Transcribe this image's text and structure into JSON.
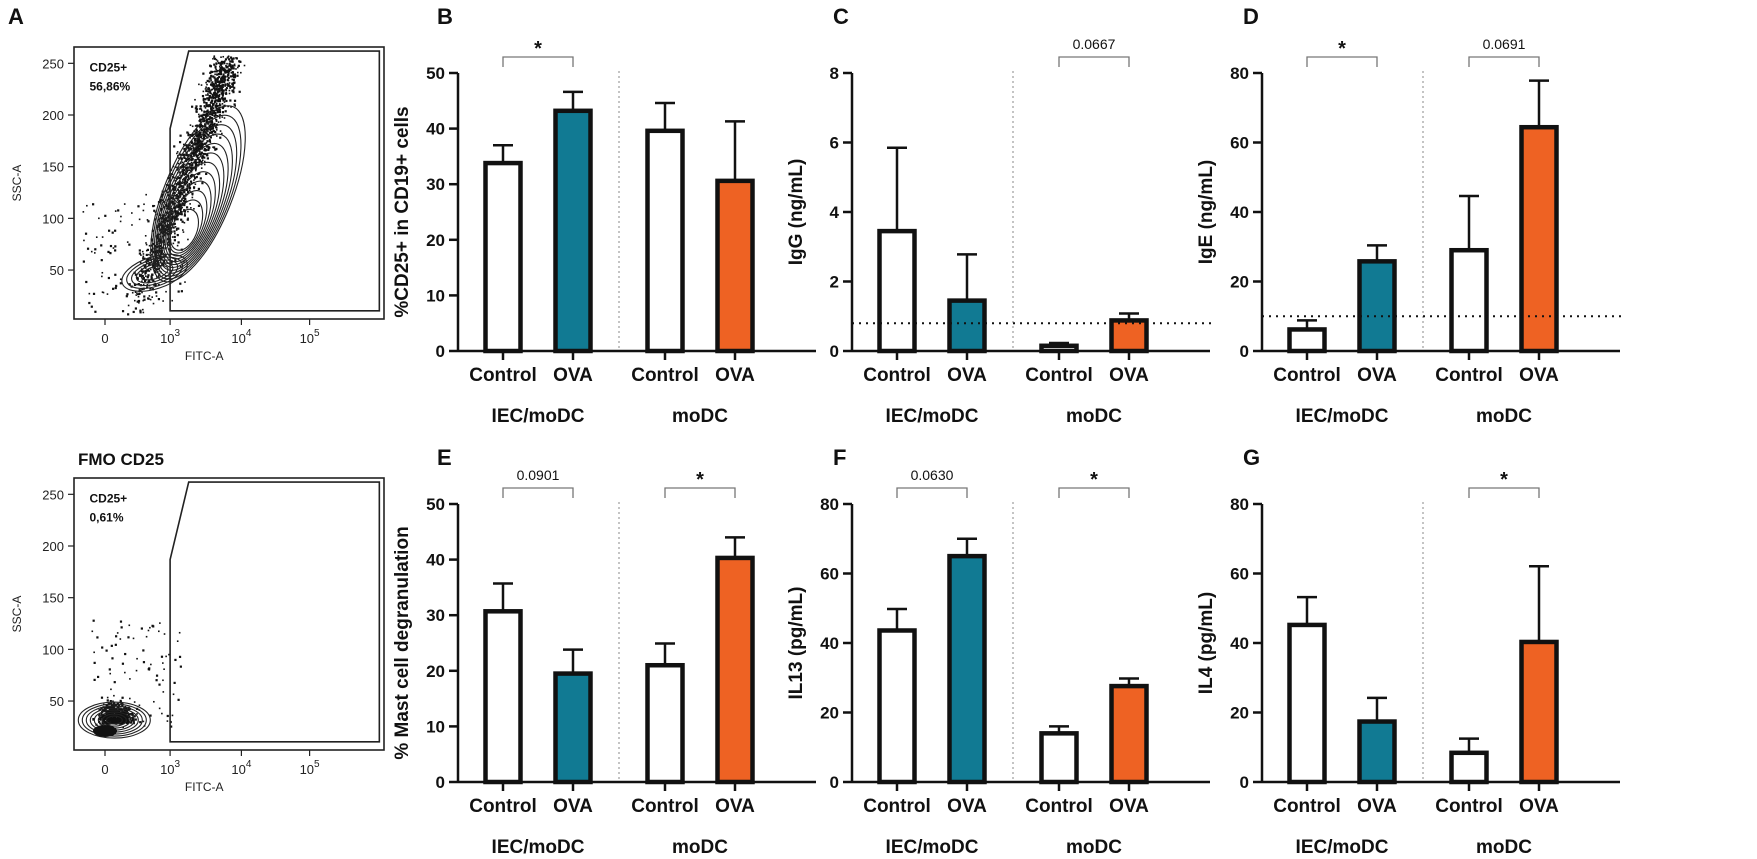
{
  "colors": {
    "control_fill": "#ffffff",
    "ova_iec": "#117a93",
    "ova_modc": "#ee6223",
    "axis": "#111111"
  },
  "flow": [
    {
      "panel_label": "A",
      "title": "",
      "gate_name": "CD25+",
      "gate_value": "56,86%",
      "x_label": "FITC-A",
      "y_label": "SSC-A",
      "x_ticks": [
        "0",
        "10",
        "10",
        "10"
      ],
      "x_tick_exps": [
        "",
        "3",
        "4",
        "5"
      ],
      "y_ticks": [
        "50",
        "100",
        "150",
        "200",
        "250"
      ]
    },
    {
      "panel_label": "",
      "title": "FMO CD25",
      "gate_name": "CD25+",
      "gate_value": "0,61%",
      "x_label": "FITC-A",
      "y_label": "SSC-A",
      "x_ticks": [
        "0",
        "10",
        "10",
        "10"
      ],
      "x_tick_exps": [
        "",
        "3",
        "4",
        "5"
      ],
      "y_ticks": [
        "50",
        "100",
        "150",
        "200",
        "250"
      ]
    }
  ],
  "chart_data": [
    {
      "panel_label": "B",
      "type": "bar",
      "ylabel": "%CD25+ in CD19+ cells",
      "ylim": [
        0,
        50
      ],
      "yticks": [
        0,
        10,
        20,
        30,
        40,
        50
      ],
      "categories": [
        "Control",
        "OVA",
        "Control",
        "OVA"
      ],
      "groups": [
        "IEC/moDC",
        "moDC"
      ],
      "values": [
        33.8,
        43.2,
        39.6,
        30.6
      ],
      "errors": [
        3.2,
        3.4,
        5.0,
        10.7
      ],
      "comparisons": [
        {
          "group": 0,
          "label": "*"
        }
      ],
      "threshold": null
    },
    {
      "panel_label": "C",
      "type": "bar",
      "ylabel": "IgG (ng/mL)",
      "ylim": [
        0,
        8
      ],
      "yticks": [
        0,
        2,
        4,
        6,
        8
      ],
      "categories": [
        "Control",
        "OVA",
        "Control",
        "OVA"
      ],
      "groups": [
        "IEC/moDC",
        "moDC"
      ],
      "values": [
        3.45,
        1.45,
        0.15,
        0.88
      ],
      "errors": [
        2.4,
        1.33,
        0.08,
        0.2
      ],
      "comparisons": [
        {
          "group": 1,
          "label": "0.0667"
        }
      ],
      "threshold": 0.8
    },
    {
      "panel_label": "D",
      "type": "bar",
      "ylabel": "IgE (ng/mL)",
      "ylim": [
        0,
        80
      ],
      "yticks": [
        0,
        20,
        40,
        60,
        80
      ],
      "categories": [
        "Control",
        "OVA",
        "Control",
        "OVA"
      ],
      "groups": [
        "IEC/moDC",
        "moDC"
      ],
      "values": [
        6.2,
        25.8,
        29.0,
        64.4
      ],
      "errors": [
        2.6,
        4.6,
        15.6,
        13.4
      ],
      "comparisons": [
        {
          "group": 0,
          "label": "*"
        },
        {
          "group": 1,
          "label": "0.0691"
        }
      ],
      "threshold": 10
    },
    {
      "panel_label": "E",
      "type": "bar",
      "ylabel": "% Mast cell degranulation",
      "ylim": [
        0,
        50
      ],
      "yticks": [
        0,
        10,
        20,
        30,
        40,
        50
      ],
      "categories": [
        "Control",
        "OVA",
        "Control",
        "OVA"
      ],
      "groups": [
        "IEC/moDC",
        "moDC"
      ],
      "values": [
        30.7,
        19.5,
        21.0,
        40.3
      ],
      "errors": [
        5.0,
        4.3,
        3.9,
        3.7
      ],
      "comparisons": [
        {
          "group": 0,
          "label": "0.0901"
        },
        {
          "group": 1,
          "label": "*"
        }
      ],
      "threshold": null
    },
    {
      "panel_label": "F",
      "type": "bar",
      "ylabel": "IL13 (pg/mL)",
      "ylim": [
        0,
        80
      ],
      "yticks": [
        0,
        20,
        40,
        60,
        80
      ],
      "categories": [
        "Control",
        "OVA",
        "Control",
        "OVA"
      ],
      "groups": [
        "IEC/moDC",
        "moDC"
      ],
      "values": [
        43.6,
        65.0,
        14.0,
        27.6
      ],
      "errors": [
        6.2,
        5.0,
        2.0,
        2.2
      ],
      "comparisons": [
        {
          "group": 0,
          "label": "0.0630"
        },
        {
          "group": 1,
          "label": "*"
        }
      ],
      "threshold": null
    },
    {
      "panel_label": "G",
      "type": "bar",
      "ylabel": "IL4 (pg/mL)",
      "ylim": [
        0,
        80
      ],
      "yticks": [
        0,
        20,
        40,
        60,
        80
      ],
      "categories": [
        "Control",
        "OVA",
        "Control",
        "OVA"
      ],
      "groups": [
        "IEC/moDC",
        "moDC"
      ],
      "values": [
        45.2,
        17.4,
        8.4,
        40.3
      ],
      "errors": [
        8.0,
        6.8,
        4.1,
        21.8
      ],
      "comparisons": [
        {
          "group": 1,
          "label": "*"
        }
      ],
      "threshold": null
    }
  ]
}
